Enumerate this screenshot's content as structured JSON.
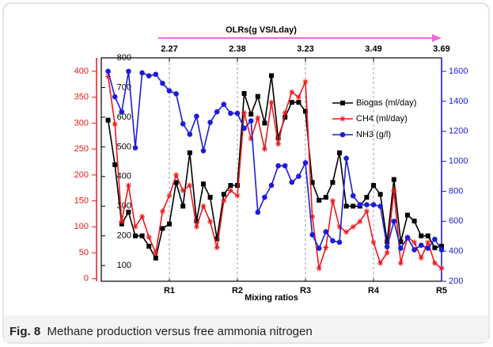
{
  "chart_data": {
    "type": "line",
    "top_axis_title": "OLRs(g VS/Lday)",
    "xlabel": "Mixing ratios",
    "x": [
      0.1,
      0.2,
      0.3,
      0.4,
      0.5,
      0.6,
      0.7,
      0.8,
      0.9,
      1.0,
      1.1,
      1.2,
      1.3,
      1.4,
      1.5,
      1.6,
      1.7,
      1.8,
      1.9,
      2.0,
      2.1,
      2.2,
      2.3,
      2.4,
      2.5,
      2.6,
      2.7,
      2.8,
      2.9,
      3.0,
      3.1,
      3.2,
      3.3,
      3.4,
      3.5,
      3.6,
      3.7,
      3.8,
      3.9,
      4.0,
      4.1,
      4.2,
      4.3,
      4.4,
      4.5,
      4.6,
      4.7,
      4.8,
      4.9,
      5.0
    ],
    "xlim": [
      0,
      5
    ],
    "xticks": [
      {
        "value": 1,
        "label": "R1"
      },
      {
        "value": 2,
        "label": "R2"
      },
      {
        "value": 3,
        "label": "R3"
      },
      {
        "value": 4,
        "label": "R4"
      },
      {
        "value": 5,
        "label": "R5"
      }
    ],
    "x2ticks": [
      {
        "value": 1,
        "label": "2.27"
      },
      {
        "value": 2,
        "label": "2.38"
      },
      {
        "value": 3,
        "label": "3.23"
      },
      {
        "value": 4,
        "label": "3.49"
      },
      {
        "value": 5,
        "label": "3.69"
      }
    ],
    "ylim": [
      47,
      800
    ],
    "yticks": [
      100,
      200,
      300,
      400,
      500,
      600,
      700,
      800
    ],
    "ycolor": "#000000",
    "y2lim": [
      -5,
      426
    ],
    "y2ticks": [
      0,
      50,
      100,
      150,
      200,
      250,
      300,
      350,
      400
    ],
    "y2color": "#e8191c",
    "y3lim": [
      200,
      1690
    ],
    "y3ticks": [
      200,
      400,
      600,
      800,
      1000,
      1200,
      1400,
      1600
    ],
    "y3color": "#1c1cd6",
    "grid": "dashed-x",
    "series": [
      {
        "name": "Biogas (ml/day)",
        "color": "#000000",
        "marker": "square",
        "axis": "y",
        "values": [
          590,
          440,
          240,
          280,
          200,
          200,
          165,
          125,
          225,
          240,
          380,
          300,
          480,
          250,
          375,
          330,
          190,
          340,
          370,
          370,
          680,
          610,
          670,
          580,
          740,
          530,
          600,
          650,
          650,
          620,
          380,
          320,
          330,
          380,
          480,
          300,
          300,
          300,
          330,
          370,
          340,
          180,
          390,
          180,
          270,
          250,
          200,
          200,
          160,
          165
        ]
      },
      {
        "name": "CH4 (ml/day)",
        "color": "#e8191c",
        "marker": "star",
        "axis": "y2",
        "values": [
          390,
          298,
          110,
          180,
          100,
          120,
          80,
          50,
          130,
          160,
          200,
          170,
          180,
          100,
          140,
          110,
          60,
          150,
          170,
          160,
          320,
          270,
          310,
          250,
          340,
          260,
          320,
          360,
          350,
          380,
          120,
          20,
          60,
          150,
          100,
          90,
          100,
          110,
          130,
          70,
          30,
          50,
          170,
          30,
          80,
          70,
          40,
          70,
          30,
          20
        ]
      },
      {
        "name": "NH3 (g/l)",
        "color": "#1c1cd6",
        "marker": "circle",
        "axis": "y3",
        "values": [
          1600,
          1430,
          1330,
          1600,
          1090,
          1590,
          1570,
          1580,
          1520,
          1470,
          1450,
          1250,
          1180,
          1300,
          1070,
          1260,
          1330,
          1380,
          1320,
          1320,
          1220,
          1270,
          660,
          760,
          840,
          970,
          970,
          860,
          900,
          990,
          510,
          420,
          530,
          470,
          460,
          1020,
          770,
          710,
          710,
          710,
          700,
          430,
          600,
          420,
          490,
          410,
          440,
          420,
          480,
          410
        ]
      }
    ],
    "caption_label": "Fig. 8",
    "caption": "Methane production versus free ammonia nitrogen"
  }
}
